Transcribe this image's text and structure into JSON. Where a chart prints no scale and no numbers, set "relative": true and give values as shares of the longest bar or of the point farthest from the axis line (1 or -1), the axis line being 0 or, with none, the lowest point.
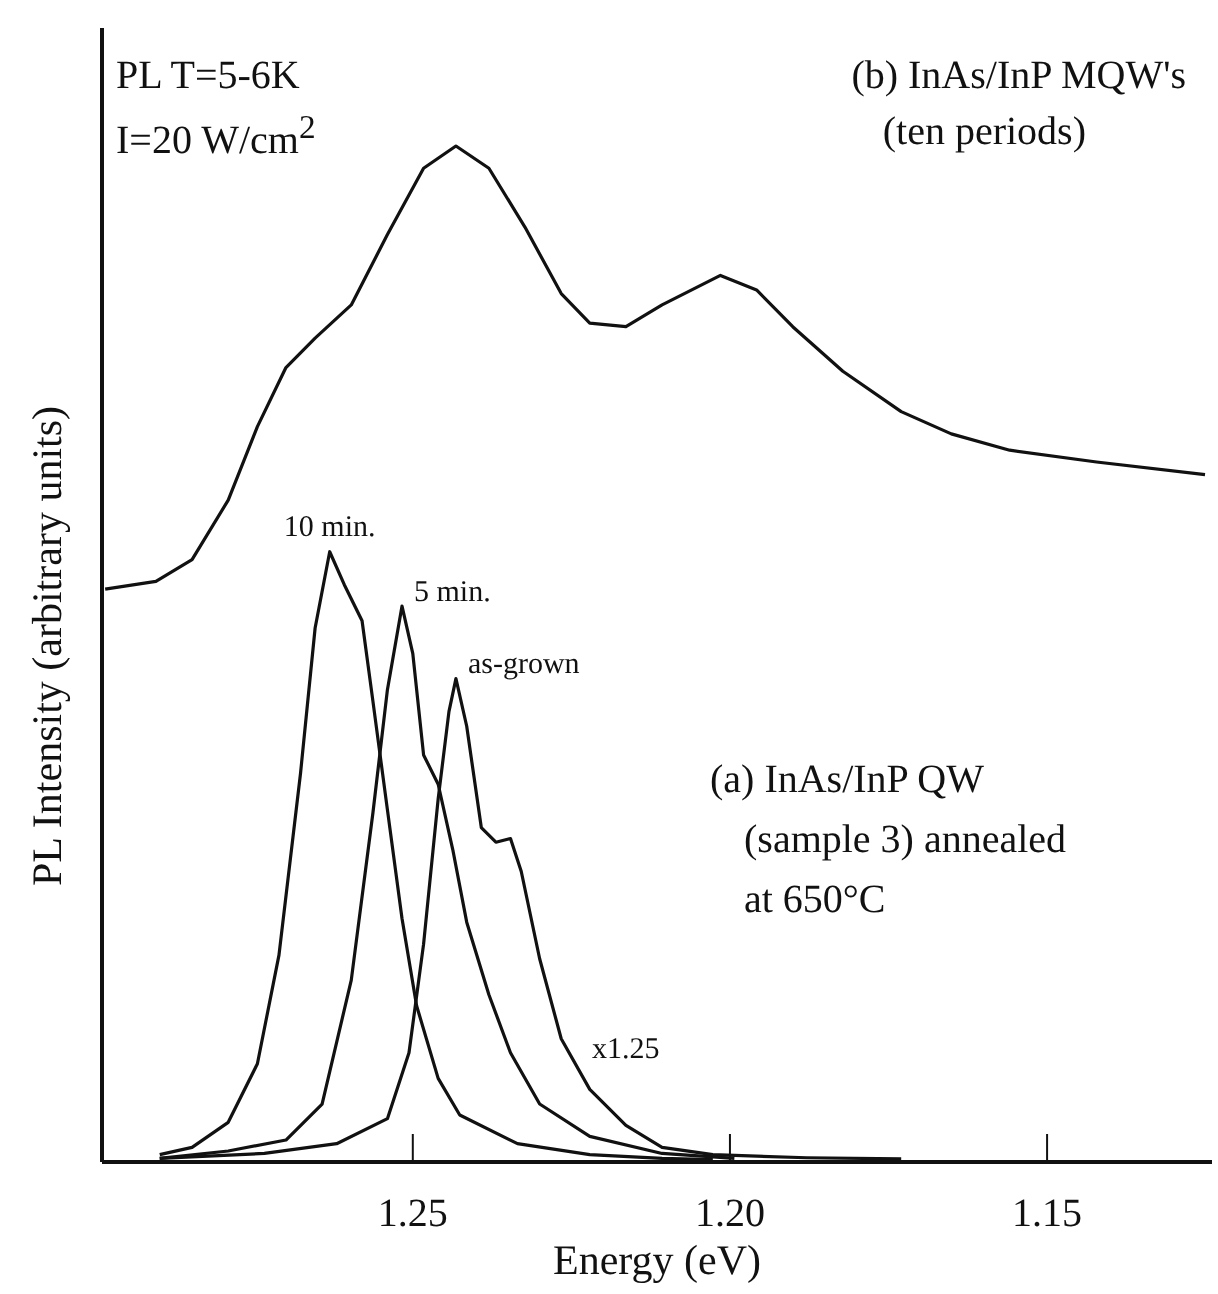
{
  "chart_data": [
    {
      "type": "line",
      "relative": true,
      "xlim": [
        1.299,
        1.124
      ],
      "tick_labels": false,
      "annotations": [
        "PL  T=5-6K",
        "I=20 W/cm$^{2}$",
        "(b) InAs/InP MQW's",
        "(ten periods)"
      ],
      "series": [
        {
          "color": "#111111",
          "x": [
            1.2985,
            1.2905,
            1.2848,
            1.2791,
            1.2745,
            1.27,
            1.2654,
            1.2597,
            1.254,
            1.2483,
            1.2432,
            1.238,
            1.2323,
            1.2266,
            1.2221,
            1.2164,
            1.2107,
            1.2015,
            1.1958,
            1.1901,
            1.1822,
            1.173,
            1.1651,
            1.1559,
            1.1422,
            1.1251
          ],
          "values": [
            0.024,
            0.041,
            0.089,
            0.22,
            0.382,
            0.512,
            0.577,
            0.65,
            0.805,
            0.951,
            1,
            0.951,
            0.821,
            0.675,
            0.61,
            0.602,
            0.65,
            0.715,
            0.683,
            0.602,
            0.504,
            0.415,
            0.366,
            0.33,
            0.304,
            0.276
          ]
        }
      ]
    },
    {
      "type": "line",
      "relative": true,
      "xlim": [
        1.299,
        1.124
      ],
      "xticks": [
        {
          "value": 1.25,
          "label": "1.25"
        },
        {
          "value": 1.2,
          "label": "1.20"
        },
        {
          "value": 1.15,
          "label": "1.15"
        }
      ],
      "xlabel": "Energy (eV)",
      "ylabel": "PL Intensity (arbitrary units)",
      "annotations": [
        "(a) InAs/InP QW",
        "(sample 3) annealed",
        "at 650°C",
        "x1.25"
      ],
      "series": [
        {
          "name": "10 min.",
          "color": "#111111",
          "x": [
            1.2899,
            1.2848,
            1.2791,
            1.2745,
            1.2711,
            1.2677,
            1.2654,
            1.2631,
            1.2608,
            1.258,
            1.2563,
            1.254,
            1.2517,
            1.2494,
            1.246,
            1.2426,
            1.2335,
            1.2221,
            1.2107,
            1.2027
          ],
          "values": [
            0.012,
            0.024,
            0.065,
            0.161,
            0.339,
            0.637,
            0.875,
            1,
            0.946,
            0.887,
            0.756,
            0.577,
            0.399,
            0.256,
            0.137,
            0.077,
            0.03,
            0.012,
            0.006,
            0.004
          ]
        },
        {
          "name": "5 min.",
          "color": "#111111",
          "x": [
            1.2899,
            1.2791,
            1.27,
            1.2643,
            1.2597,
            1.2563,
            1.254,
            1.2517,
            1.25,
            1.2483,
            1.246,
            1.2437,
            1.2415,
            1.238,
            1.2346,
            1.23,
            1.2221,
            1.2107,
            1.1993
          ],
          "values": [
            0.006,
            0.018,
            0.036,
            0.095,
            0.298,
            0.571,
            0.774,
            0.911,
            0.833,
            0.667,
            0.619,
            0.512,
            0.393,
            0.274,
            0.179,
            0.095,
            0.042,
            0.014,
            0.006
          ]
        },
        {
          "name": "as-grown",
          "color": "#111111",
          "x": [
            1.2899,
            1.2734,
            1.262,
            1.254,
            1.2506,
            1.2483,
            1.246,
            1.2443,
            1.2432,
            1.2415,
            1.2392,
            1.2369,
            1.2346,
            1.2329,
            1.23,
            1.2266,
            1.2221,
            1.2164,
            1.2107,
            1.2027,
            1.1879,
            1.173
          ],
          "values": [
            0.006,
            0.014,
            0.03,
            0.071,
            0.179,
            0.357,
            0.595,
            0.738,
            0.792,
            0.714,
            0.548,
            0.524,
            0.53,
            0.476,
            0.333,
            0.202,
            0.119,
            0.06,
            0.024,
            0.012,
            0.007,
            0.005
          ]
        }
      ]
    }
  ]
}
